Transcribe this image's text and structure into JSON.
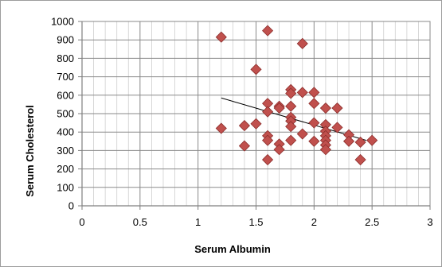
{
  "chart_data": {
    "type": "scatter",
    "title": "",
    "xlabel": "Serum Albumin",
    "ylabel": "Serum Cholesterol",
    "xlim": [
      0,
      3
    ],
    "ylim": [
      0,
      1000
    ],
    "x_major_ticks": [
      0,
      0.5,
      1,
      1.5,
      2,
      2.5,
      3
    ],
    "x_tick_labels": [
      "0",
      "0.5",
      "1",
      "1.5",
      "2",
      "2.5",
      "3"
    ],
    "y_major_ticks": [
      0,
      100,
      200,
      300,
      400,
      500,
      600,
      700,
      800,
      900,
      1000
    ],
    "y_tick_labels": [
      "0",
      "100",
      "200",
      "300",
      "400",
      "500",
      "600",
      "700",
      "800",
      "900",
      "1000"
    ],
    "x_minor_step": 0.1,
    "grid": true,
    "legend": "none",
    "marker": "diamond",
    "marker_color": "#C0504D",
    "marker_edge_color": "#8B2E2C",
    "trendline": {
      "type": "linear",
      "x": [
        1.2,
        2.45
      ],
      "y": [
        585,
        355
      ],
      "color": "#000000"
    },
    "series": [
      {
        "points": [
          {
            "x": 1.2,
            "y": 915
          },
          {
            "x": 1.2,
            "y": 420
          },
          {
            "x": 1.4,
            "y": 435
          },
          {
            "x": 1.4,
            "y": 325
          },
          {
            "x": 1.5,
            "y": 740
          },
          {
            "x": 1.5,
            "y": 445
          },
          {
            "x": 1.6,
            "y": 950
          },
          {
            "x": 1.6,
            "y": 555
          },
          {
            "x": 1.6,
            "y": 510
          },
          {
            "x": 1.6,
            "y": 380
          },
          {
            "x": 1.6,
            "y": 355
          },
          {
            "x": 1.6,
            "y": 250
          },
          {
            "x": 1.7,
            "y": 540
          },
          {
            "x": 1.7,
            "y": 530
          },
          {
            "x": 1.7,
            "y": 335
          },
          {
            "x": 1.7,
            "y": 305
          },
          {
            "x": 1.8,
            "y": 630
          },
          {
            "x": 1.8,
            "y": 610
          },
          {
            "x": 1.8,
            "y": 540
          },
          {
            "x": 1.8,
            "y": 480
          },
          {
            "x": 1.8,
            "y": 460
          },
          {
            "x": 1.8,
            "y": 430
          },
          {
            "x": 1.8,
            "y": 355
          },
          {
            "x": 1.9,
            "y": 880
          },
          {
            "x": 1.9,
            "y": 615
          },
          {
            "x": 1.9,
            "y": 390
          },
          {
            "x": 2.0,
            "y": 615
          },
          {
            "x": 2.0,
            "y": 555
          },
          {
            "x": 2.0,
            "y": 450
          },
          {
            "x": 2.0,
            "y": 350
          },
          {
            "x": 2.1,
            "y": 530
          },
          {
            "x": 2.1,
            "y": 440
          },
          {
            "x": 2.1,
            "y": 405
          },
          {
            "x": 2.1,
            "y": 380
          },
          {
            "x": 2.1,
            "y": 355
          },
          {
            "x": 2.1,
            "y": 330
          },
          {
            "x": 2.1,
            "y": 305
          },
          {
            "x": 2.2,
            "y": 530
          },
          {
            "x": 2.2,
            "y": 425
          },
          {
            "x": 2.3,
            "y": 385
          },
          {
            "x": 2.3,
            "y": 350
          },
          {
            "x": 2.4,
            "y": 345
          },
          {
            "x": 2.4,
            "y": 250
          },
          {
            "x": 2.5,
            "y": 355
          }
        ]
      }
    ]
  }
}
